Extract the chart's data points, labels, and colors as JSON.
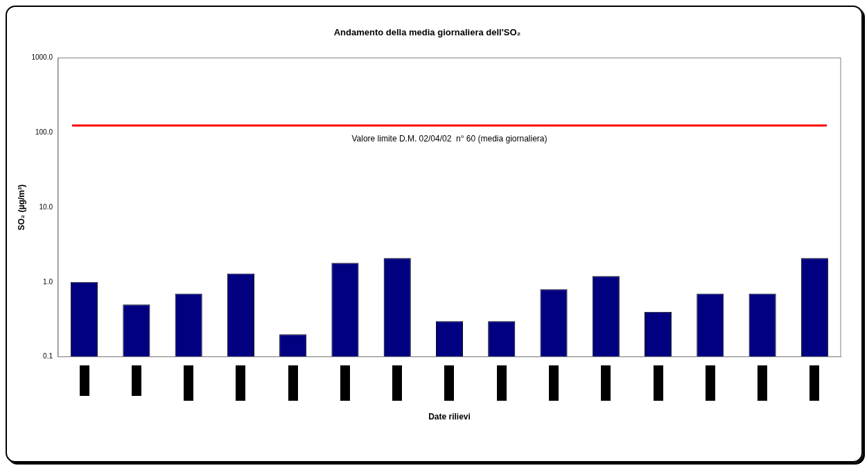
{
  "chart_data": {
    "type": "bar",
    "title": "Andamento della media giornaliera dell'SO₂",
    "annotations": [
      "Date rilievi"
    ],
    "ylabel": "SO₂ (µg/m³)",
    "categories": [
      null,
      null,
      null,
      null,
      null,
      null,
      null,
      null,
      null,
      null,
      null,
      null,
      null,
      null,
      null
    ],
    "values": [
      1.0,
      0.5,
      0.7,
      1.3,
      0.2,
      1.8,
      2.1,
      0.3,
      0.3,
      0.8,
      1.2,
      0.4,
      0.7,
      0.7,
      2.1
    ],
    "color": "#000080",
    "log": "y",
    "ylim": [
      0.1,
      1000
    ],
    "yticks": [
      {
        "value": 0.1,
        "label": "0.1"
      },
      {
        "value": 1,
        "label": "1.0"
      },
      {
        "value": 10,
        "label": "10.0"
      },
      {
        "value": 100,
        "label": "100.0"
      },
      {
        "value": 1000,
        "label": "1000.0"
      }
    ],
    "ref_lines": [
      {
        "axis": "y",
        "value": 125,
        "label": "Valore limite D.M. 02/04/02  n° 60 (media giornaliera)",
        "color": "#ff0000"
      }
    ],
    "grid": false,
    "legend": false
  }
}
